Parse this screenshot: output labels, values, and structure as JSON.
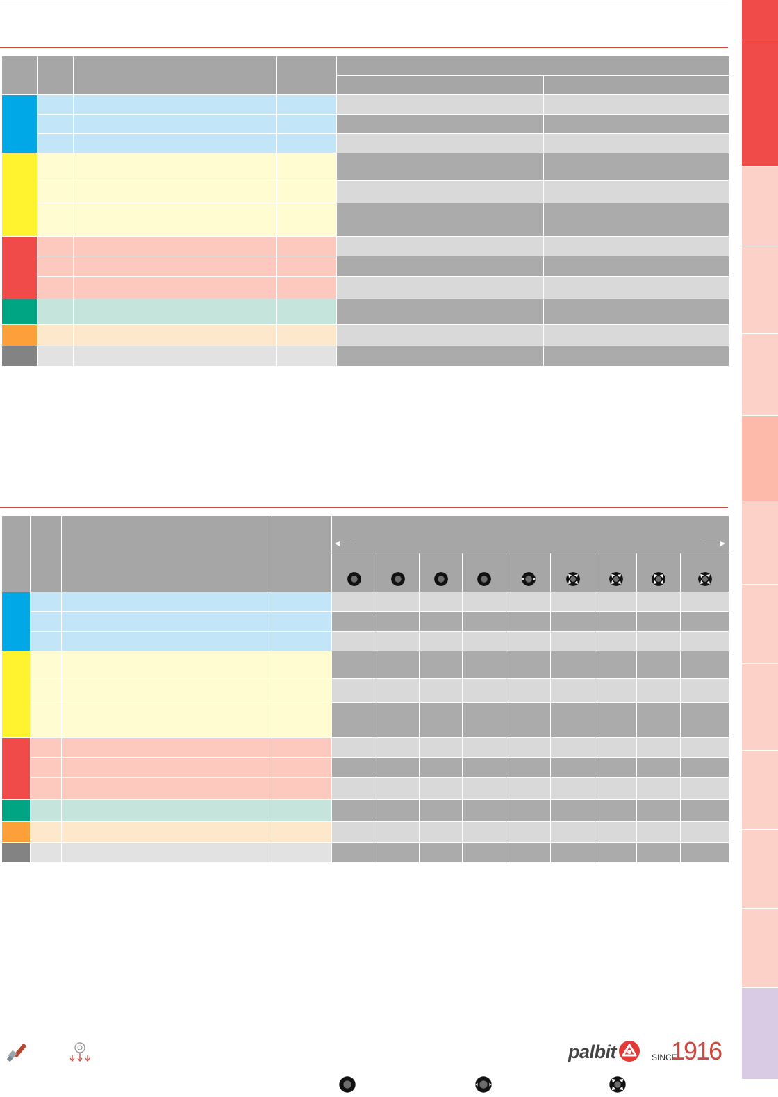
{
  "colors": {
    "rule": "#d0473e",
    "header_grey": "#a6a6a6",
    "row_light": "#d9d9d9",
    "row_dark": "#ababab",
    "tab_red": "#f04b48",
    "tab_light": "#fcd2c8",
    "tab_mid": "#fdb9a9",
    "tab_purple": "#dacbe5"
  },
  "groups": [
    {
      "name": "blue",
      "strip": "#00a8e7",
      "tint": "#c3e5f8"
    },
    {
      "name": "yellow",
      "strip": "#fff22e",
      "tint": "#fefcd0"
    },
    {
      "name": "red",
      "strip": "#f04b48",
      "tint": "#fdc9bf"
    },
    {
      "name": "green",
      "strip": "#00a583",
      "tint": "#c5e4dc"
    },
    {
      "name": "orange",
      "strip": "#fda03a",
      "tint": "#fee8cc"
    },
    {
      "name": "grey",
      "strip": "#838383",
      "tint": "#e2e2e2"
    }
  ],
  "table_one": {
    "header": {
      "first_row": "",
      "subcolumns": [
        "",
        ""
      ]
    },
    "rows": [
      {
        "group": 0,
        "cells": [
          "",
          "",
          "",
          "",
          ""
        ]
      },
      {
        "group": 0,
        "cells": [
          "",
          "",
          "",
          "",
          ""
        ]
      },
      {
        "group": 0,
        "cells": [
          "",
          "",
          "",
          "",
          ""
        ]
      },
      {
        "group": 1,
        "cells": [
          "",
          "",
          "",
          "",
          ""
        ]
      },
      {
        "group": 1,
        "cells": [
          "",
          "",
          "",
          "",
          ""
        ]
      },
      {
        "group": 1,
        "cells": [
          "",
          "",
          "",
          "",
          ""
        ]
      },
      {
        "group": 2,
        "cells": [
          "",
          "",
          "",
          "",
          ""
        ]
      },
      {
        "group": 2,
        "cells": [
          "",
          "",
          "",
          "",
          ""
        ]
      },
      {
        "group": 2,
        "cells": [
          "",
          "",
          "",
          "",
          ""
        ]
      },
      {
        "group": 3,
        "cells": [
          "",
          "",
          "",
          "",
          ""
        ]
      },
      {
        "group": 4,
        "cells": [
          "",
          "",
          "",
          "",
          ""
        ]
      },
      {
        "group": 5,
        "cells": [
          "",
          "",
          "",
          "",
          ""
        ]
      }
    ]
  },
  "table_two": {
    "header_icons": [
      "round-insert-icon",
      "round-insert-icon",
      "round-insert-icon",
      "round-insert-icon",
      "notched-insert-icon",
      "cross-insert-icon",
      "cross-insert-icon",
      "cross-insert-icon",
      "cross-insert-icon"
    ],
    "legend_icons": [
      "round-insert-icon",
      "notched-insert-icon",
      "cross-insert-icon"
    ]
  },
  "tabs": [
    {
      "color": "#f04b48"
    },
    {
      "color": "#f04b48"
    },
    {
      "color": "#fcd2c8"
    },
    {
      "color": "#fcd2c8"
    },
    {
      "color": "#fcd2c8"
    },
    {
      "color": "#fdb9a9"
    },
    {
      "color": "#fcd2c8"
    },
    {
      "color": "#fcd2c8"
    },
    {
      "color": "#fcd2c8"
    },
    {
      "color": "#fcd2c8"
    },
    {
      "color": "#fcd2c8"
    },
    {
      "color": "#fcd2c8"
    },
    {
      "color": "#dacbe5"
    }
  ],
  "footer": {
    "brand": "palbit",
    "since": "SINCE",
    "year": "1916"
  }
}
